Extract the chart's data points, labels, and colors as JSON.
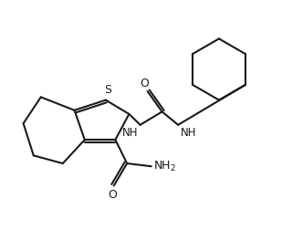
{
  "bg_color": "#ffffff",
  "line_color": "#1a1a1a",
  "line_width": 1.5,
  "fig_width": 3.2,
  "fig_height": 2.52,
  "dpi": 100,
  "xlim": [
    0,
    10
  ],
  "ylim": [
    0,
    7.875
  ]
}
